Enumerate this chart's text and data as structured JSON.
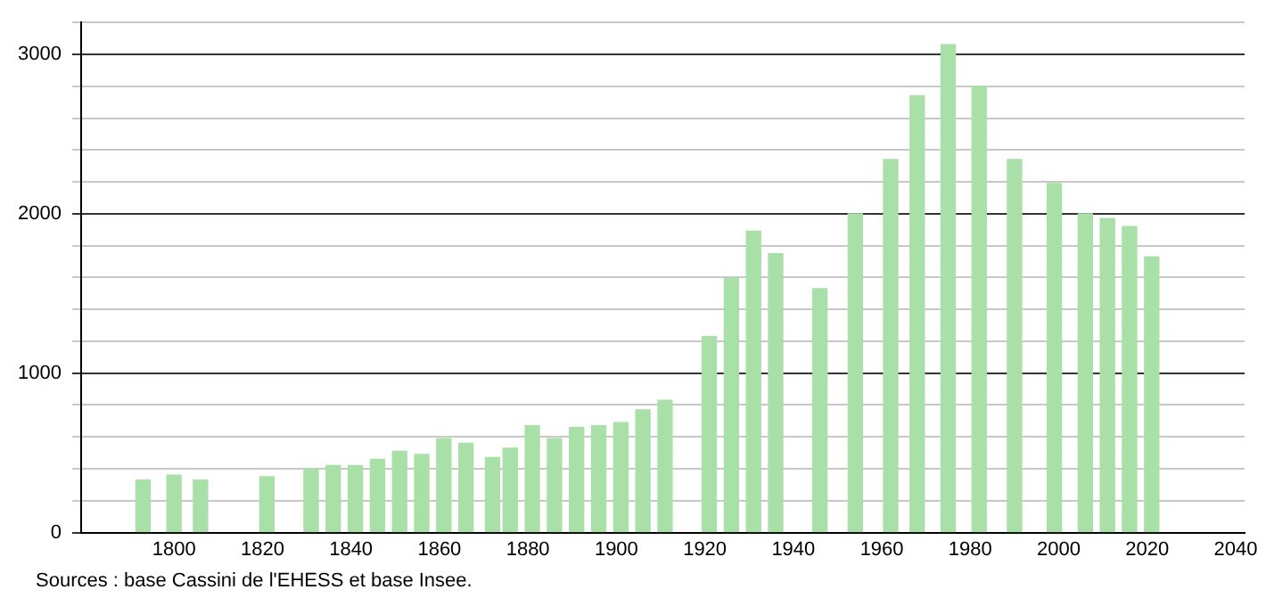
{
  "chart_data": {
    "type": "bar",
    "x": [
      1793,
      1800,
      1806,
      1821,
      1831,
      1836,
      1841,
      1846,
      1851,
      1856,
      1861,
      1866,
      1872,
      1876,
      1881,
      1886,
      1891,
      1896,
      1901,
      1906,
      1911,
      1921,
      1926,
      1931,
      1936,
      1946,
      1954,
      1962,
      1968,
      1975,
      1982,
      1990,
      1999,
      2006,
      2011,
      2016,
      2021
    ],
    "values": [
      330,
      360,
      330,
      350,
      400,
      420,
      420,
      460,
      510,
      490,
      590,
      560,
      470,
      530,
      670,
      590,
      660,
      670,
      690,
      770,
      830,
      1230,
      1600,
      1890,
      1750,
      1530,
      2000,
      2340,
      2740,
      3060,
      2800,
      2340,
      2190,
      2000,
      1970,
      1920,
      1730
    ],
    "color": "#a8e0a8",
    "xlim": [
      1779,
      2042
    ],
    "xticks": [
      1800,
      1820,
      1840,
      1860,
      1880,
      1900,
      1920,
      1940,
      1960,
      1980,
      2000,
      2020,
      2040
    ],
    "ylim": [
      0,
      3200
    ],
    "yticks": [
      0,
      {
        "value": 200,
        "label": null
      },
      {
        "value": 400,
        "label": null
      },
      {
        "value": 600,
        "label": null
      },
      {
        "value": 800,
        "label": null
      },
      1000,
      {
        "value": 1200,
        "label": null
      },
      {
        "value": 1400,
        "label": null
      },
      {
        "value": 1600,
        "label": null
      },
      {
        "value": 1800,
        "label": null
      },
      2000,
      {
        "value": 2200,
        "label": null
      },
      {
        "value": 2400,
        "label": null
      },
      {
        "value": 2600,
        "label": null
      },
      {
        "value": 2800,
        "label": null
      },
      3000,
      {
        "value": 3200,
        "label": null
      }
    ],
    "grid": "y",
    "annotations": [
      "Sources : base Cassini de l'EHESS et base Insee."
    ]
  }
}
